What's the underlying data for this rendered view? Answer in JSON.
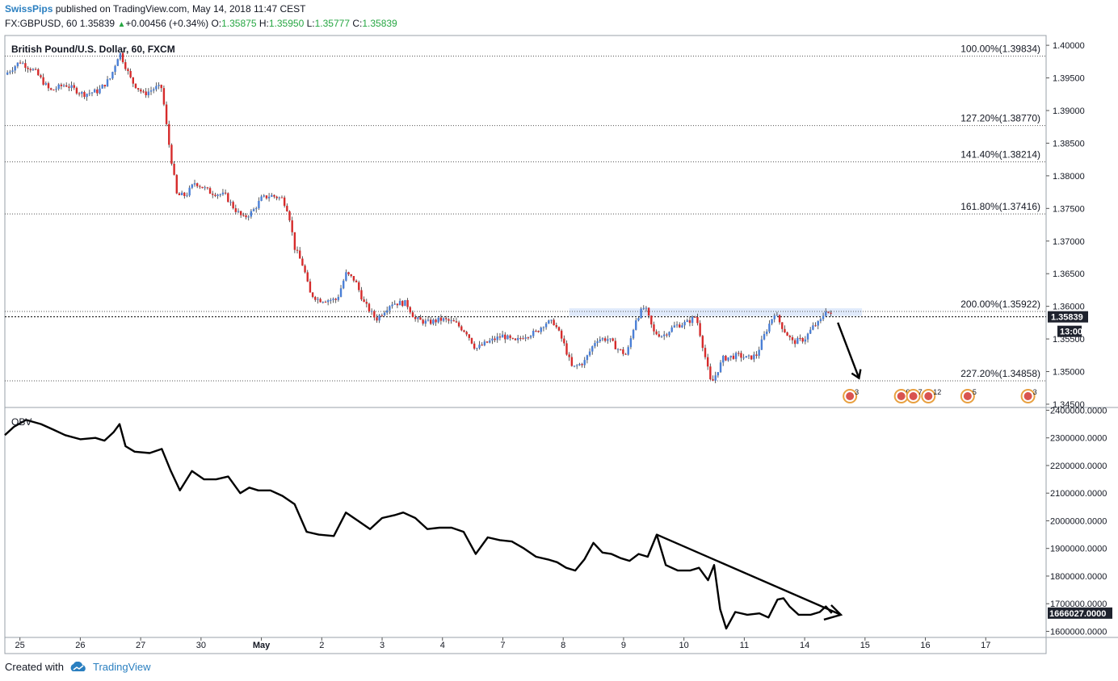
{
  "header": {
    "author": "SwissPips",
    "published_text": "published on TradingView.com, May 14, 2018 11:47 CEST",
    "symbol": "FX:GBPUSD, 60",
    "last": "1.35839",
    "change": "+0.00456 (+0.34%)",
    "open_label": "O:",
    "open": "1.35875",
    "high_label": "H:",
    "high": "1.35950",
    "low_label": "L:",
    "low": "1.35777",
    "close_label": "C:",
    "close": "1.35839"
  },
  "footer": {
    "created_with": "Created with",
    "brand": "TradingView"
  },
  "colors": {
    "up": "#4a7fd6",
    "down": "#d62b2b",
    "line": "#000000",
    "grid": "#555555",
    "zone": "#dde8fb",
    "link": "#2a7fc0"
  },
  "chart_data": [
    {
      "type": "candlestick",
      "title": "British Pound/U.S. Dollar, 60, FXCM",
      "ylim": [
        1.3445,
        1.4015
      ],
      "yticks": [
        "1.40000",
        "1.39500",
        "1.39000",
        "1.38500",
        "1.38000",
        "1.37500",
        "1.37000",
        "1.36500",
        "1.36000",
        "1.35500",
        "1.35000",
        "1.34500"
      ],
      "price_label": "1.35839",
      "countdown_label": "13:00",
      "fib_levels": [
        {
          "label": "100.00%(1.39834)",
          "value": 1.39834
        },
        {
          "label": "127.20%(1.38770)",
          "value": 1.3877
        },
        {
          "label": "141.40%(1.38214)",
          "value": 1.38214
        },
        {
          "label": "161.80%(1.37416)",
          "value": 1.37416
        },
        {
          "label": "200.00%(1.35922)",
          "value": 1.35922
        },
        {
          "label": "227.20%(1.34858)",
          "value": 1.34858
        }
      ],
      "resistance_zone": [
        1.3585,
        1.3597
      ],
      "path": [
        [
          0,
          1.3955
        ],
        [
          0.5,
          1.3975
        ],
        [
          1,
          1.396
        ],
        [
          1.5,
          1.393
        ],
        [
          2,
          1.394
        ],
        [
          2.6,
          1.3925
        ],
        [
          3.1,
          1.393
        ],
        [
          3.5,
          1.395
        ],
        [
          3.8,
          1.399
        ],
        [
          4.2,
          1.3945
        ],
        [
          4.6,
          1.3925
        ],
        [
          5.0,
          1.3935
        ],
        [
          5.2,
          1.3935
        ],
        [
          5.4,
          1.386
        ],
        [
          5.7,
          1.377
        ],
        [
          6.0,
          1.377
        ],
        [
          6.3,
          1.379
        ],
        [
          6.8,
          1.3775
        ],
        [
          7.3,
          1.377
        ],
        [
          7.6,
          1.375
        ],
        [
          7.9,
          1.3735
        ],
        [
          8.2,
          1.3745
        ],
        [
          8.5,
          1.3765
        ],
        [
          8.8,
          1.377
        ],
        [
          9.2,
          1.3765
        ],
        [
          9.4,
          1.3745
        ],
        [
          9.6,
          1.369
        ],
        [
          9.9,
          1.366
        ],
        [
          10.1,
          1.362
        ],
        [
          10.4,
          1.361
        ],
        [
          11.0,
          1.361
        ],
        [
          11.3,
          1.365
        ],
        [
          11.6,
          1.364
        ],
        [
          11.9,
          1.3605
        ],
        [
          12.3,
          1.358
        ],
        [
          12.8,
          1.3605
        ],
        [
          13.3,
          1.3605
        ],
        [
          13.6,
          1.358
        ],
        [
          14.0,
          1.3575
        ],
        [
          14.5,
          1.358
        ],
        [
          14.9,
          1.3575
        ],
        [
          15.3,
          1.356
        ],
        [
          15.6,
          1.3535
        ],
        [
          16.0,
          1.3545
        ],
        [
          16.5,
          1.3555
        ],
        [
          16.9,
          1.3545
        ],
        [
          17.2,
          1.3555
        ],
        [
          17.6,
          1.356
        ],
        [
          17.9,
          1.3575
        ],
        [
          18.2,
          1.3575
        ],
        [
          18.5,
          1.3545
        ],
        [
          18.8,
          1.3505
        ],
        [
          19.2,
          1.3515
        ],
        [
          19.6,
          1.355
        ],
        [
          20.0,
          1.355
        ],
        [
          20.3,
          1.3535
        ],
        [
          20.6,
          1.3525
        ],
        [
          20.9,
          1.358
        ],
        [
          21.2,
          1.36
        ],
        [
          21.5,
          1.356
        ],
        [
          21.8,
          1.3555
        ],
        [
          22.2,
          1.357
        ],
        [
          22.6,
          1.3575
        ],
        [
          22.9,
          1.3585
        ],
        [
          23.1,
          1.3545
        ],
        [
          23.4,
          1.348
        ],
        [
          23.8,
          1.352
        ],
        [
          24.3,
          1.3525
        ],
        [
          24.6,
          1.352
        ],
        [
          24.9,
          1.3525
        ],
        [
          25.2,
          1.356
        ],
        [
          25.5,
          1.359
        ],
        [
          25.8,
          1.3565
        ],
        [
          26.1,
          1.3545
        ],
        [
          26.5,
          1.355
        ],
        [
          26.8,
          1.357
        ],
        [
          27.0,
          1.3575
        ],
        [
          27.2,
          1.3595
        ],
        [
          27.4,
          1.3584
        ]
      ]
    },
    {
      "type": "line",
      "series": [
        {
          "name": "OBV"
        }
      ],
      "ylim": [
        1578000,
        2410000
      ],
      "yticks": [
        "2400000.0000",
        "2300000.0000",
        "2200000.0000",
        "2100000.0000",
        "2000000.0000",
        "1900000.0000",
        "1800000.0000",
        "1700000.0000",
        "1600000.0000"
      ],
      "value_label": "1666027.0000",
      "trendline": [
        [
          21.6,
          1950000
        ],
        [
          27.7,
          1660000
        ]
      ],
      "path": [
        [
          0,
          2310000
        ],
        [
          0.3,
          2340000
        ],
        [
          0.7,
          2365000
        ],
        [
          1.2,
          2350000
        ],
        [
          1.6,
          2330000
        ],
        [
          2.0,
          2310000
        ],
        [
          2.5,
          2295000
        ],
        [
          3.0,
          2300000
        ],
        [
          3.3,
          2290000
        ],
        [
          3.6,
          2320000
        ],
        [
          3.8,
          2350000
        ],
        [
          4.0,
          2270000
        ],
        [
          4.3,
          2250000
        ],
        [
          4.8,
          2245000
        ],
        [
          5.2,
          2260000
        ],
        [
          5.5,
          2180000
        ],
        [
          5.8,
          2110000
        ],
        [
          6.2,
          2180000
        ],
        [
          6.6,
          2150000
        ],
        [
          7.0,
          2150000
        ],
        [
          7.4,
          2160000
        ],
        [
          7.8,
          2100000
        ],
        [
          8.1,
          2120000
        ],
        [
          8.4,
          2110000
        ],
        [
          8.8,
          2110000
        ],
        [
          9.2,
          2090000
        ],
        [
          9.6,
          2060000
        ],
        [
          10.0,
          1960000
        ],
        [
          10.4,
          1950000
        ],
        [
          10.9,
          1945000
        ],
        [
          11.3,
          2030000
        ],
        [
          11.7,
          2000000
        ],
        [
          12.1,
          1970000
        ],
        [
          12.5,
          2010000
        ],
        [
          12.9,
          2020000
        ],
        [
          13.2,
          2030000
        ],
        [
          13.6,
          2010000
        ],
        [
          14.0,
          1970000
        ],
        [
          14.4,
          1975000
        ],
        [
          14.8,
          1975000
        ],
        [
          15.2,
          1960000
        ],
        [
          15.6,
          1880000
        ],
        [
          16.0,
          1940000
        ],
        [
          16.4,
          1930000
        ],
        [
          16.8,
          1925000
        ],
        [
          17.2,
          1900000
        ],
        [
          17.6,
          1870000
        ],
        [
          18.0,
          1860000
        ],
        [
          18.3,
          1850000
        ],
        [
          18.6,
          1830000
        ],
        [
          18.9,
          1820000
        ],
        [
          19.2,
          1860000
        ],
        [
          19.5,
          1920000
        ],
        [
          19.8,
          1885000
        ],
        [
          20.1,
          1880000
        ],
        [
          20.4,
          1865000
        ],
        [
          20.7,
          1855000
        ],
        [
          21.0,
          1880000
        ],
        [
          21.3,
          1870000
        ],
        [
          21.6,
          1950000
        ],
        [
          21.9,
          1840000
        ],
        [
          22.3,
          1820000
        ],
        [
          22.7,
          1820000
        ],
        [
          23.0,
          1830000
        ],
        [
          23.3,
          1785000
        ],
        [
          23.5,
          1840000
        ],
        [
          23.7,
          1680000
        ],
        [
          23.9,
          1610000
        ],
        [
          24.2,
          1670000
        ],
        [
          24.6,
          1660000
        ],
        [
          25.0,
          1665000
        ],
        [
          25.3,
          1650000
        ],
        [
          25.6,
          1715000
        ],
        [
          25.8,
          1720000
        ],
        [
          26.0,
          1690000
        ],
        [
          26.3,
          1660000
        ],
        [
          26.7,
          1660000
        ],
        [
          27.0,
          1670000
        ],
        [
          27.2,
          1690000
        ],
        [
          27.4,
          1666000
        ]
      ]
    }
  ],
  "x_axis": {
    "labels": [
      {
        "label": "25",
        "pos": 0.5
      },
      {
        "label": "26",
        "pos": 2.5
      },
      {
        "label": "27",
        "pos": 4.5
      },
      {
        "label": "30",
        "pos": 6.5
      },
      {
        "label": "May",
        "pos": 8.5
      },
      {
        "label": "2",
        "pos": 10.5
      },
      {
        "label": "3",
        "pos": 12.5
      },
      {
        "label": "4",
        "pos": 14.5
      },
      {
        "label": "7",
        "pos": 16.5
      },
      {
        "label": "8",
        "pos": 18.5
      },
      {
        "label": "9",
        "pos": 20.5
      },
      {
        "label": "10",
        "pos": 22.5
      },
      {
        "label": "11",
        "pos": 24.5
      },
      {
        "label": "14",
        "pos": 26.5
      },
      {
        "label": "15",
        "pos": 28.5
      },
      {
        "label": "16",
        "pos": 30.5
      },
      {
        "label": "17",
        "pos": 32.5
      }
    ],
    "range": [
      0,
      34.5
    ]
  },
  "events": [
    {
      "pos": 28.0,
      "count": "3"
    },
    {
      "pos": 29.7,
      "count": "9"
    },
    {
      "pos": 30.1,
      "count": "7"
    },
    {
      "pos": 30.6,
      "count": "12"
    },
    {
      "pos": 31.9,
      "count": "5"
    },
    {
      "pos": 33.9,
      "count": "3"
    }
  ]
}
